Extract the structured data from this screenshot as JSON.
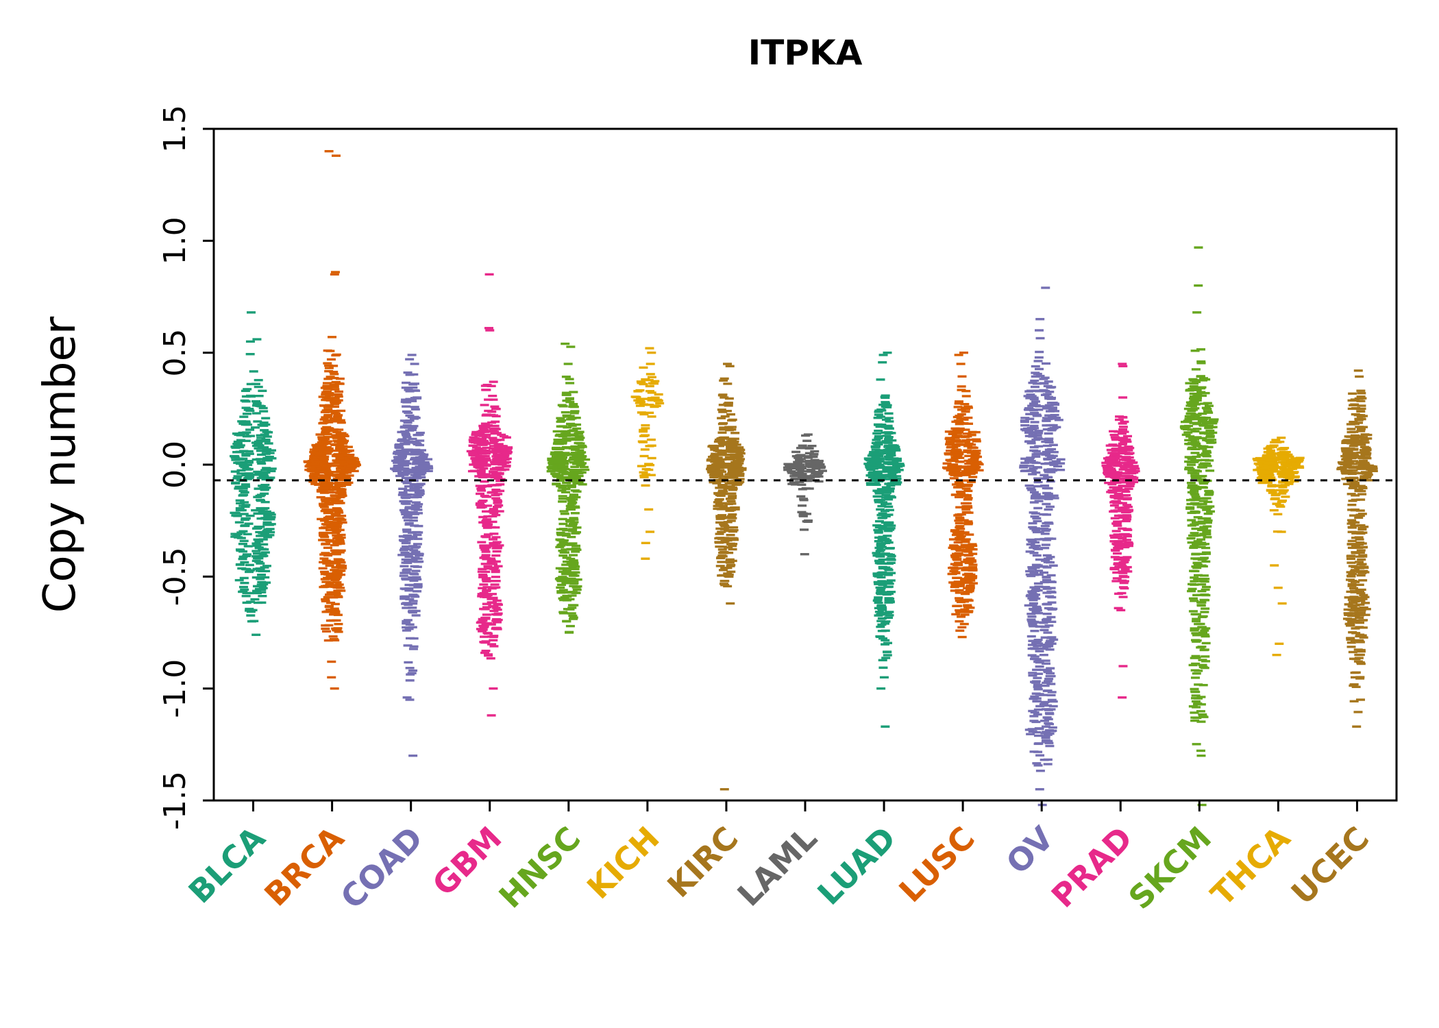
{
  "chart_data": {
    "type": "beeswarm-violin",
    "title": "ITPKA",
    "ylabel": "Copy number",
    "ylim": [
      -1.5,
      1.5
    ],
    "yticks": [
      1.5,
      1.0,
      0.5,
      0.0,
      -0.5,
      -1.0,
      -1.5
    ],
    "ytick_labels": [
      "1.5",
      "1.0",
      "0.5",
      "0.0",
      "-0.5",
      "-1.0",
      "-1.5"
    ],
    "reference_line": -0.07,
    "reference_line_style": "dashed",
    "grid": false,
    "legend": "none",
    "categories": [
      {
        "label": "BLCA",
        "color": "#1B9E77",
        "halfwidth": 26,
        "clip": [
          -0.77,
          0.68
        ],
        "clusters": [
          [
            0.02,
            0.09,
            110
          ],
          [
            -0.28,
            0.14,
            150
          ],
          [
            0.22,
            0.1,
            60
          ],
          [
            -0.55,
            0.08,
            40
          ]
        ],
        "outliers": [
          0.68,
          0.56,
          0.55,
          -0.76,
          -0.7,
          -0.65
        ]
      },
      {
        "label": "BRCA",
        "color": "#D95F02",
        "halfwidth": 34,
        "clip": [
          -1.0,
          0.6
        ],
        "clusters": [
          [
            0.01,
            0.07,
            260
          ],
          [
            0.05,
            0.18,
            160
          ],
          [
            -0.35,
            0.18,
            160
          ],
          [
            -0.6,
            0.12,
            60
          ],
          [
            0.3,
            0.1,
            60
          ]
        ],
        "outliers": [
          1.38,
          1.4,
          0.85,
          0.86,
          0.57,
          -0.95,
          -1.0
        ]
      },
      {
        "label": "COAD",
        "color": "#7570B3",
        "halfwidth": 24,
        "clip": [
          -1.05,
          0.49
        ],
        "clusters": [
          [
            0.0,
            0.06,
            120
          ],
          [
            -0.1,
            0.2,
            120
          ],
          [
            -0.55,
            0.2,
            100
          ],
          [
            0.2,
            0.1,
            50
          ]
        ],
        "outliers": [
          0.49,
          0.45,
          -1.3,
          -1.05,
          -1.04
        ]
      },
      {
        "label": "GBM",
        "color": "#E7298A",
        "halfwidth": 26,
        "clip": [
          -1.12,
          0.62
        ],
        "clusters": [
          [
            0.05,
            0.07,
            150
          ],
          [
            0.1,
            0.15,
            80
          ],
          [
            -0.35,
            0.25,
            150
          ],
          [
            -0.65,
            0.1,
            60
          ]
        ],
        "outliers": [
          0.85,
          0.61,
          0.6,
          0.37,
          -1.12,
          -1.0
        ]
      },
      {
        "label": "HNSC",
        "color": "#66A61E",
        "halfwidth": 24,
        "clip": [
          -0.75,
          0.55
        ],
        "clusters": [
          [
            0.0,
            0.06,
            130
          ],
          [
            0.15,
            0.12,
            90
          ],
          [
            -0.3,
            0.18,
            140
          ],
          [
            -0.55,
            0.08,
            50
          ]
        ],
        "outliers": [
          0.54,
          0.45,
          -0.75,
          -0.7
        ]
      },
      {
        "label": "KICH",
        "color": "#E6AB02",
        "halfwidth": 16,
        "clip": [
          -0.42,
          0.52
        ],
        "clusters": [
          [
            0.31,
            0.05,
            45
          ],
          [
            0.05,
            0.12,
            25
          ]
        ],
        "outliers": [
          0.52,
          0.5,
          0.45,
          -0.2,
          -0.3,
          -0.35,
          -0.42
        ]
      },
      {
        "label": "KIRC",
        "color": "#A6761D",
        "halfwidth": 22,
        "clip": [
          -0.62,
          0.45
        ],
        "clusters": [
          [
            0.0,
            0.05,
            150
          ],
          [
            0.12,
            0.1,
            80
          ],
          [
            -0.2,
            0.12,
            100
          ],
          [
            -0.4,
            0.1,
            40
          ]
        ],
        "outliers": [
          0.45,
          0.44,
          0.3,
          -0.52,
          -0.62,
          -1.45
        ]
      },
      {
        "label": "LAML",
        "color": "#666666",
        "halfwidth": 24,
        "clip": [
          -0.42,
          0.15
        ],
        "clusters": [
          [
            0.0,
            0.04,
            90
          ],
          [
            -0.1,
            0.08,
            30
          ]
        ],
        "outliers": [
          0.13,
          -0.22,
          -0.23,
          -0.25,
          -0.4
        ]
      },
      {
        "label": "LUAD",
        "color": "#1B9E77",
        "halfwidth": 22,
        "clip": [
          -1.17,
          0.5
        ],
        "clusters": [
          [
            0.0,
            0.06,
            140
          ],
          [
            0.1,
            0.12,
            80
          ],
          [
            -0.35,
            0.2,
            140
          ],
          [
            -0.6,
            0.15,
            60
          ]
        ],
        "outliers": [
          0.5,
          0.49,
          0.38,
          -0.95,
          -1.0,
          -1.17
        ]
      },
      {
        "label": "LUSC",
        "color": "#D95F02",
        "halfwidth": 22,
        "clip": [
          -0.77,
          0.5
        ],
        "clusters": [
          [
            0.1,
            0.1,
            130
          ],
          [
            0.0,
            0.06,
            80
          ],
          [
            -0.35,
            0.15,
            140
          ],
          [
            -0.55,
            0.1,
            50
          ]
        ],
        "outliers": [
          0.5,
          0.49,
          0.45,
          -0.77,
          -0.7
        ]
      },
      {
        "label": "OV",
        "color": "#7570B3",
        "halfwidth": 26,
        "clip": [
          -1.4,
          0.62
        ],
        "clusters": [
          [
            0.25,
            0.12,
            120
          ],
          [
            0.0,
            0.1,
            80
          ],
          [
            -0.5,
            0.25,
            160
          ],
          [
            -0.9,
            0.2,
            100
          ],
          [
            -1.2,
            0.1,
            40
          ]
        ],
        "outliers": [
          0.79,
          0.65,
          0.6,
          -1.45,
          -1.52
        ]
      },
      {
        "label": "PRAD",
        "color": "#E7298A",
        "halfwidth": 20,
        "clip": [
          -0.65,
          0.3
        ],
        "clusters": [
          [
            -0.02,
            0.05,
            130
          ],
          [
            -0.15,
            0.1,
            80
          ],
          [
            -0.4,
            0.12,
            80
          ],
          [
            0.1,
            0.08,
            40
          ]
        ],
        "outliers": [
          0.45,
          0.44,
          0.3,
          -0.9,
          -1.04,
          -0.65
        ]
      },
      {
        "label": "SKCM",
        "color": "#66A61E",
        "halfwidth": 20,
        "clip": [
          -1.3,
          0.8
        ],
        "clusters": [
          [
            0.15,
            0.12,
            110
          ],
          [
            0.3,
            0.1,
            60
          ],
          [
            -0.2,
            0.2,
            120
          ],
          [
            -0.6,
            0.2,
            80
          ],
          [
            -1.0,
            0.15,
            40
          ]
        ],
        "outliers": [
          0.97,
          0.8,
          0.68,
          -1.3,
          -1.52
        ]
      },
      {
        "label": "THCA",
        "color": "#E6AB02",
        "halfwidth": 30,
        "clip": [
          -0.3,
          0.12
        ],
        "clusters": [
          [
            0.0,
            0.035,
            200
          ],
          [
            -0.1,
            0.06,
            60
          ]
        ],
        "outliers": [
          0.12,
          0.1,
          -0.3,
          -0.45,
          -0.55,
          -0.62,
          -0.8,
          -0.85
        ]
      },
      {
        "label": "UCEC",
        "color": "#A6761D",
        "halfwidth": 22,
        "clip": [
          -1.17,
          0.42
        ],
        "clusters": [
          [
            0.0,
            0.06,
            130
          ],
          [
            0.15,
            0.12,
            70
          ],
          [
            -0.45,
            0.25,
            150
          ],
          [
            -0.75,
            0.12,
            60
          ]
        ],
        "outliers": [
          0.42,
          0.33,
          -0.95,
          -1.05,
          -1.17
        ]
      }
    ]
  }
}
